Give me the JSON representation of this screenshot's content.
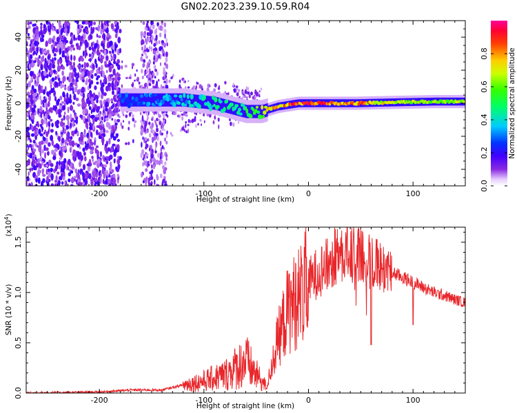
{
  "title": "GN02.2023.239.10.59.R04",
  "chart_data": [
    {
      "type": "heatmap",
      "title": "GN02.2023.239.10.59.R04",
      "xlabel": "Height of straight line (km)",
      "ylabel": "Frequency (Hz)",
      "xlim": [
        -270,
        150
      ],
      "ylim": [
        -50,
        50
      ],
      "x_ticks": [
        "-200",
        "-100",
        "0",
        "100"
      ],
      "y_ticks": [
        "-40",
        "-20",
        "0",
        "20",
        "40"
      ],
      "colorbar": {
        "label": "Normalized spectral amplitude",
        "range": [
          0.0,
          1.0
        ],
        "ticks": [
          "0.0",
          "0.2",
          "0.4",
          "0.6",
          "0.8"
        ],
        "colormap": [
          "#ffffff",
          "#6a00ff",
          "#0000ff",
          "#00ffff",
          "#00ff00",
          "#ffff00",
          "#ff8000",
          "#ff0000",
          "#ff0099"
        ]
      },
      "features": {
        "noisy_region_x": [
          -270,
          -180
        ],
        "noisy_band_x": [
          -160,
          -135
        ],
        "signal_track": [
          {
            "x": -180,
            "y": 2,
            "amp": 0.3
          },
          {
            "x": -150,
            "y": 2,
            "amp": 0.35
          },
          {
            "x": -120,
            "y": 2,
            "amp": 0.4
          },
          {
            "x": -90,
            "y": 0,
            "amp": 0.45
          },
          {
            "x": -60,
            "y": -5,
            "amp": 0.5
          },
          {
            "x": -45,
            "y": -5,
            "amp": 0.7
          },
          {
            "x": -30,
            "y": -2,
            "amp": 0.85
          },
          {
            "x": -10,
            "y": 0,
            "amp": 0.95
          },
          {
            "x": 20,
            "y": 0,
            "amp": 0.95
          },
          {
            "x": 45,
            "y": 0,
            "amp": 0.9
          },
          {
            "x": 80,
            "y": 0.5,
            "amp": 0.75
          },
          {
            "x": 120,
            "y": 1,
            "amp": 0.7
          },
          {
            "x": 150,
            "y": 1,
            "amp": 0.7
          }
        ]
      }
    },
    {
      "type": "line",
      "xlabel": "Height of straight line (km)",
      "ylabel": "SNR (10 * v/v)",
      "y_multiplier": "(x10",
      "y_multiplier_exp": "4",
      "y_multiplier_close": ")",
      "xlim": [
        -270,
        150
      ],
      "ylim": [
        0,
        1.65
      ],
      "x_ticks": [
        "-200",
        "-100",
        "0",
        "100"
      ],
      "y_ticks": [
        "0.0",
        "0.5",
        "1.0",
        "1.5"
      ],
      "color": "#e8262a",
      "envelope": {
        "x": [
          -270,
          -200,
          -170,
          -140,
          -120,
          -100,
          -80,
          -70,
          -60,
          -50,
          -40,
          -30,
          -20,
          -10,
          0,
          10,
          20,
          30,
          40,
          50,
          60,
          70,
          80,
          90,
          100,
          110,
          120,
          130,
          140,
          150
        ],
        "y": [
          0.0,
          0.01,
          0.03,
          0.03,
          0.08,
          0.12,
          0.18,
          0.25,
          0.32,
          0.18,
          0.06,
          0.5,
          0.82,
          0.95,
          1.1,
          1.22,
          1.28,
          1.42,
          1.38,
          1.35,
          1.3,
          1.25,
          1.2,
          1.15,
          1.1,
          1.05,
          1.0,
          0.97,
          0.93,
          0.9
        ]
      }
    }
  ]
}
